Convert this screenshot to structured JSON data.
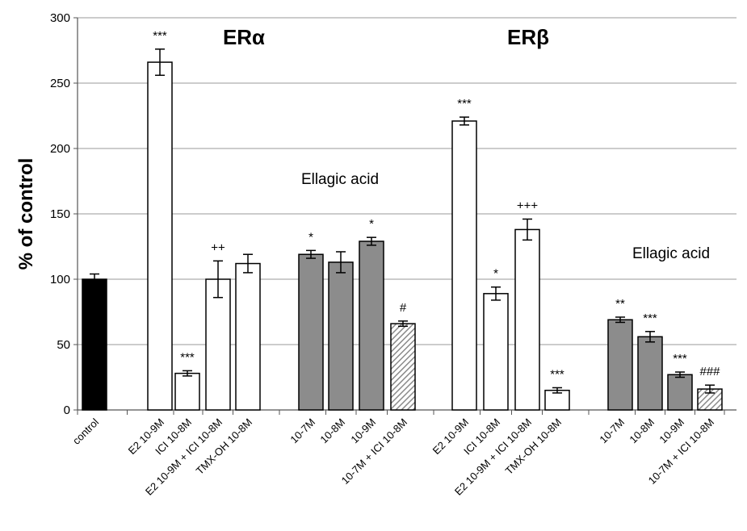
{
  "chart_data": {
    "type": "bar",
    "ylabel": "% of control",
    "ylim": [
      0,
      300
    ],
    "yticks": [
      0,
      50,
      100,
      150,
      200,
      250,
      300
    ],
    "grid": true,
    "group_titles": [
      "ERα",
      "ERβ"
    ],
    "annotations": [
      "Ellagic acid",
      "Ellagic acid"
    ],
    "colors": {
      "black": "#000000",
      "white": "#ffffff",
      "gray": "#8c8c8c",
      "hatched": "#a8a8a8"
    },
    "bars": [
      {
        "label": "control",
        "value": 100,
        "error": 4,
        "sig": "",
        "fill": "black"
      },
      {
        "label": "E2 10-9M",
        "value": 266,
        "error": 10,
        "sig": "***",
        "fill": "white"
      },
      {
        "label": "ICI 10-8M",
        "value": 28,
        "error": 2,
        "sig": "***",
        "fill": "white"
      },
      {
        "label": "E2 10-9M + ICI 10-8M",
        "value": 100,
        "error": 14,
        "sig": "++",
        "fill": "white"
      },
      {
        "label": "TMX-OH 10-8M",
        "value": 112,
        "error": 7,
        "sig": "",
        "fill": "white"
      },
      {
        "label": "10-7M",
        "value": 119,
        "error": 3,
        "sig": "*",
        "fill": "gray"
      },
      {
        "label": "10-8M",
        "value": 113,
        "error": 8,
        "sig": "",
        "fill": "gray"
      },
      {
        "label": "10-9M",
        "value": 129,
        "error": 3,
        "sig": "*",
        "fill": "gray"
      },
      {
        "label": "10-7M + ICI 10-8M",
        "value": 66,
        "error": 2,
        "sig": "#",
        "fill": "hatched"
      },
      {
        "label": "E2 10-9M",
        "value": 221,
        "error": 3,
        "sig": "***",
        "fill": "white"
      },
      {
        "label": "ICI 10-8M",
        "value": 89,
        "error": 5,
        "sig": "*",
        "fill": "white"
      },
      {
        "label": "E2 10-9M + ICI 10-8M",
        "value": 138,
        "error": 8,
        "sig": "+++",
        "fill": "white"
      },
      {
        "label": "TMX-OH 10-8M",
        "value": 15,
        "error": 2,
        "sig": "***",
        "fill": "white"
      },
      {
        "label": "10-7M",
        "value": 69,
        "error": 2,
        "sig": "**",
        "fill": "gray"
      },
      {
        "label": "10-8M",
        "value": 56,
        "error": 4,
        "sig": "***",
        "fill": "gray"
      },
      {
        "label": "10-9M",
        "value": 27,
        "error": 2,
        "sig": "***",
        "fill": "gray"
      },
      {
        "label": "10-7M + ICI 10-8M",
        "value": 16,
        "error": 3,
        "sig": "###",
        "fill": "hatched"
      }
    ]
  }
}
